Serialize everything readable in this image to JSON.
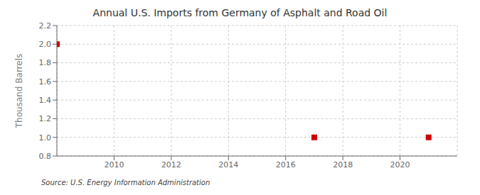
{
  "chart_data": {
    "type": "scatter",
    "title": "Annual U.S. Imports from Germany of Asphalt and Road Oil",
    "y_label": "Thousand Barrels",
    "annotations": [
      "Source: U.S. Energy Information Administration"
    ],
    "x": [
      2008,
      2017,
      2021
    ],
    "values": [
      2,
      1,
      1
    ],
    "color": "#cc0000",
    "marker": "square",
    "xlim": [
      2008,
      2022
    ],
    "ylim": [
      0.8,
      2.2
    ],
    "xticks": [
      2010,
      2012,
      2014,
      2016,
      2018,
      2020
    ],
    "yticks": [
      0.8,
      {
        "value": 1,
        "label": "1.0"
      },
      1.2,
      1.4,
      1.6,
      1.8,
      {
        "value": 2,
        "label": "2.0"
      },
      2.2
    ],
    "grid": true
  }
}
